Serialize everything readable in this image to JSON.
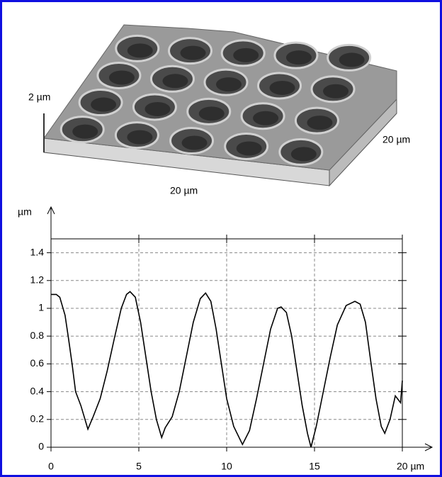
{
  "surface": {
    "height_label": "2 µm",
    "x_label": "20 µm",
    "y_label": "20 µm"
  },
  "chart_data": {
    "type": "line",
    "y_label": "µm",
    "x": [
      0,
      0.3,
      0.5,
      0.8,
      1.0,
      1.2,
      1.4,
      1.7,
      2.1,
      2.4,
      2.8,
      3.2,
      3.6,
      4.0,
      4.3,
      4.5,
      4.8,
      5.1,
      5.4,
      5.7,
      6.0,
      6.3,
      6.5,
      6.9,
      7.3,
      7.7,
      8.1,
      8.5,
      8.8,
      9.1,
      9.4,
      9.7,
      10.0,
      10.4,
      10.9,
      11.3,
      11.7,
      12.1,
      12.5,
      12.9,
      13.1,
      13.4,
      13.7,
      14.0,
      14.3,
      14.6,
      14.8,
      15.1,
      15.5,
      15.9,
      16.3,
      16.8,
      17.3,
      17.6,
      17.9,
      18.2,
      18.5,
      18.8,
      19.0,
      19.3,
      19.6,
      19.9,
      20.0
    ],
    "series": [
      {
        "color": "#000000",
        "values": [
          1.1,
          1.1,
          1.08,
          0.95,
          0.78,
          0.6,
          0.4,
          0.3,
          0.13,
          0.22,
          0.35,
          0.55,
          0.78,
          1.0,
          1.1,
          1.12,
          1.08,
          0.9,
          0.65,
          0.4,
          0.2,
          0.07,
          0.14,
          0.22,
          0.4,
          0.65,
          0.9,
          1.07,
          1.11,
          1.05,
          0.85,
          0.6,
          0.35,
          0.15,
          0.02,
          0.12,
          0.35,
          0.6,
          0.85,
          1.0,
          1.01,
          0.97,
          0.8,
          0.55,
          0.3,
          0.1,
          0.0,
          0.15,
          0.4,
          0.65,
          0.88,
          1.02,
          1.05,
          1.03,
          0.9,
          0.62,
          0.35,
          0.15,
          0.1,
          0.2,
          0.37,
          0.32,
          0.48
        ]
      }
    ],
    "xlim": [
      0,
      20
    ],
    "xticks": [
      0,
      5,
      10,
      15,
      {
        "value": 20,
        "label": "20 µm"
      }
    ],
    "ylim": [
      0,
      1.5
    ],
    "yticks": [
      0,
      0.2,
      0.4,
      0.6,
      0.8,
      1,
      1.2,
      1.4
    ],
    "grid": true
  }
}
